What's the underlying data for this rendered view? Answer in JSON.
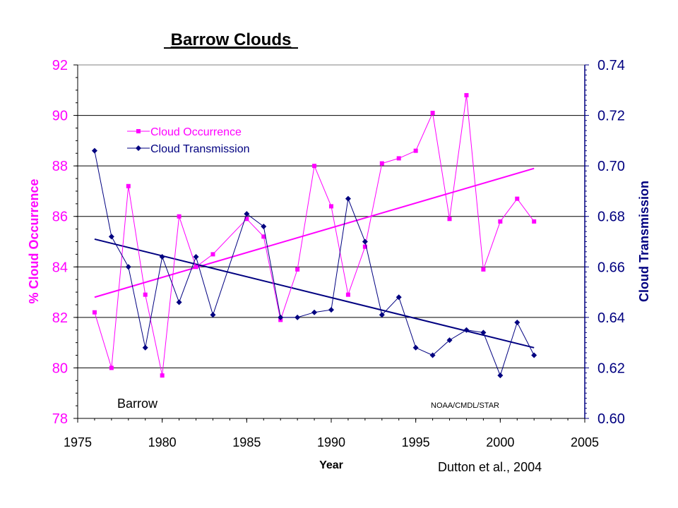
{
  "chart_data": {
    "type": "line",
    "title": "Barrow Clouds",
    "xlabel": "Year",
    "ylabel_left": "% Cloud Occurrence",
    "ylabel_right": "Cloud Transmission",
    "xlim": [
      1975,
      2005
    ],
    "ylim_left": [
      78,
      92
    ],
    "ylim_right": [
      0.6,
      0.74
    ],
    "x_ticks": [
      1975,
      1980,
      1985,
      1990,
      1995,
      2000,
      2005
    ],
    "y_left_ticks": [
      78,
      80,
      82,
      84,
      86,
      88,
      90,
      92
    ],
    "y_right_ticks": [
      "0.60",
      "0.62",
      "0.64",
      "0.66",
      "0.68",
      "0.70",
      "0.72",
      "0.74"
    ],
    "grid": true,
    "legend_position": "upper-left",
    "series": [
      {
        "name": "Cloud Occurrence",
        "axis": "left",
        "color": "#ff00ff",
        "marker": "square",
        "x": [
          1976,
          1977,
          1978,
          1979,
          1980,
          1981,
          1982,
          1983,
          1985,
          1986,
          1987,
          1988,
          1989,
          1990,
          1991,
          1992,
          1993,
          1994,
          1995,
          1996,
          1997,
          1998,
          1999,
          2000,
          2001,
          2002
        ],
        "values": [
          82.2,
          80.0,
          87.2,
          82.9,
          79.7,
          86.0,
          84.0,
          84.5,
          85.9,
          85.2,
          81.9,
          83.9,
          88.0,
          86.4,
          82.9,
          84.8,
          88.1,
          88.3,
          88.6,
          90.1,
          85.9,
          90.8,
          83.9,
          85.8,
          86.7,
          85.8
        ],
        "trend": {
          "x": [
            1976,
            2002
          ],
          "y": [
            82.8,
            87.9
          ]
        }
      },
      {
        "name": "Cloud Transmission",
        "axis": "right",
        "color": "#000080",
        "marker": "diamond",
        "x": [
          1976,
          1977,
          1978,
          1979,
          1980,
          1981,
          1982,
          1983,
          1985,
          1986,
          1987,
          1988,
          1989,
          1990,
          1991,
          1992,
          1993,
          1994,
          1995,
          1996,
          1997,
          1998,
          1999,
          2000,
          2001,
          2002
        ],
        "values": [
          0.706,
          0.672,
          0.66,
          0.628,
          0.664,
          0.646,
          0.664,
          0.641,
          0.681,
          0.676,
          0.64,
          0.64,
          0.642,
          0.643,
          0.687,
          0.67,
          0.641,
          0.648,
          0.628,
          0.625,
          0.631,
          0.635,
          0.634,
          0.617,
          0.638,
          0.625
        ],
        "trend": {
          "x": [
            1976,
            2002
          ],
          "y": [
            0.671,
            0.628
          ]
        }
      }
    ],
    "annotations": {
      "site": "Barrow",
      "credit": "NOAA/CMDL/STAR",
      "citation": "Dutton et al., 2004"
    }
  }
}
